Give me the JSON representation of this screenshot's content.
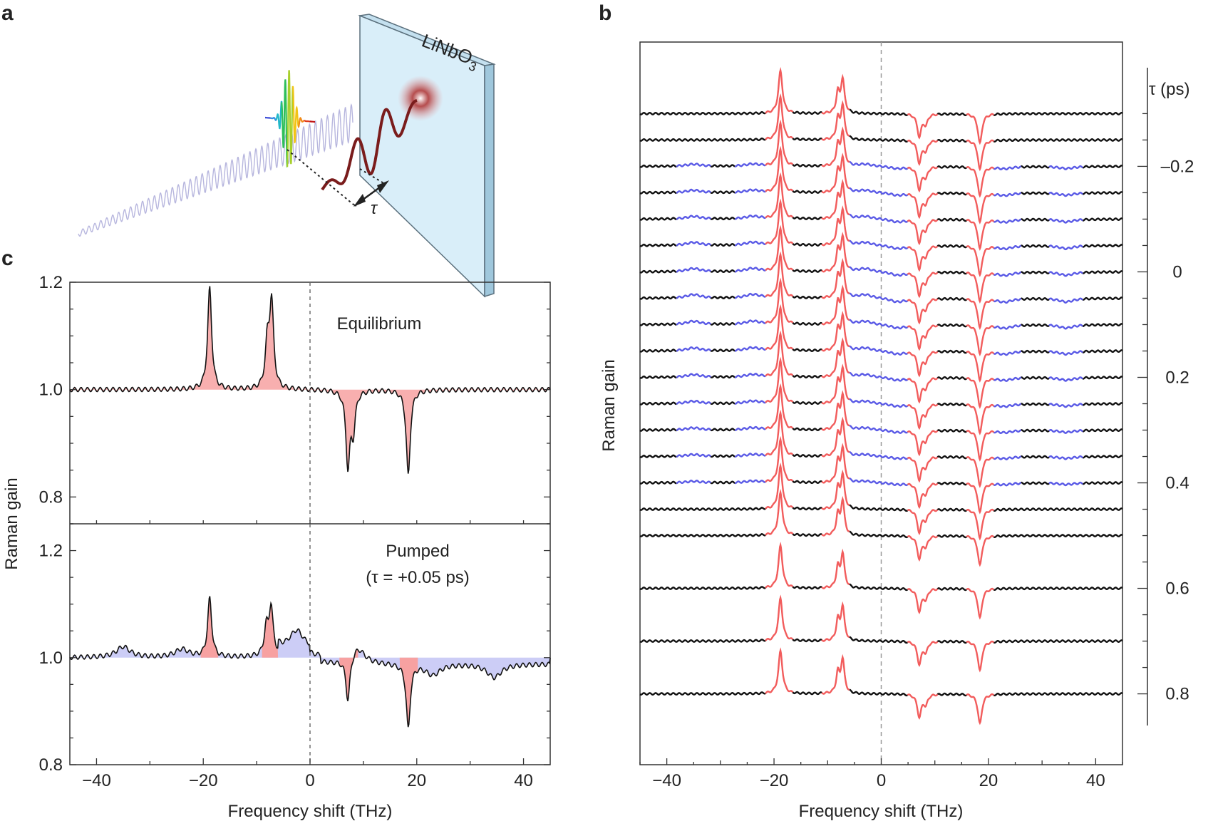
{
  "panel_labels": {
    "a": "a",
    "b": "b",
    "c": "c"
  },
  "panel_a": {
    "crystal_label": "LiNbO",
    "crystal_subscript": "3",
    "delay_symbol": "τ",
    "colors": {
      "crystal_fill": "#d9eef9",
      "crystal_edge": "#5a6f7c",
      "thz": "#7a1c1c",
      "ir_beam": "#b7b6de"
    }
  },
  "chart_data": [
    {
      "id": "c",
      "type": "line",
      "title": "",
      "xlabel": "Frequency shift (THz)",
      "ylabel": "Raman gain",
      "xlim": [
        -45,
        45
      ],
      "xticks": [
        -40,
        -20,
        0,
        20,
        40
      ],
      "subplots": [
        {
          "name": "Equilibrium",
          "annotation": [
            "Equilibrium"
          ],
          "ylim": [
            0.75,
            1.2
          ],
          "yticks": [
            0.8,
            1.0,
            1.2
          ],
          "series": [
            {
              "peaks": [
                {
                  "x": -18.8,
                  "value": 1.19
                },
                {
                  "x": -8.0,
                  "value": 1.08
                },
                {
                  "x": -7.2,
                  "value": 1.16
                },
                {
                  "x": 7.1,
                  "value": 0.86
                },
                {
                  "x": 8.1,
                  "value": 0.93
                },
                {
                  "x": 18.4,
                  "value": 0.84
                }
              ]
            }
          ]
        },
        {
          "name": "Pumped",
          "annotation": [
            "Pumped",
            "(τ = +0.05 ps)"
          ],
          "ylim": [
            0.8,
            1.25
          ],
          "yticks": [
            0.8,
            1.0,
            1.2
          ],
          "series": [
            {
              "peaks": [
                {
                  "x": -35,
                  "value": 1.02
                },
                {
                  "x": -24,
                  "value": 1.015
                },
                {
                  "x": -18.8,
                  "value": 1.11
                },
                {
                  "x": -8.2,
                  "value": 1.05
                },
                {
                  "x": -7.3,
                  "value": 1.09
                },
                {
                  "x": -2.5,
                  "value": 1.035
                },
                {
                  "x": 7.1,
                  "value": 0.92
                },
                {
                  "x": 9.0,
                  "value": 1.03
                },
                {
                  "x": 18.4,
                  "value": 0.88
                },
                {
                  "x": 23,
                  "value": 0.98
                },
                {
                  "x": 34.5,
                  "value": 0.975
                }
              ]
            }
          ]
        }
      ],
      "colors": {
        "gain_fill": "#f7a1a1",
        "loss_fill": "#f7a1a1",
        "pump_fill": "#c3c4f5",
        "line": "#111111",
        "zero_line": "#666666"
      }
    },
    {
      "id": "b",
      "type": "line",
      "title": "",
      "xlabel": "Frequency shift (THz)",
      "ylabel": "Raman gain",
      "right_axis_label": "τ (ps)",
      "xlim": [
        -45,
        45
      ],
      "xticks": [
        -40,
        -20,
        0,
        20,
        40
      ],
      "tau_range": [
        -0.36,
        0.86
      ],
      "tau_ticks": [
        -0.2,
        0,
        0.2,
        0.4,
        0.6,
        0.8
      ],
      "tau_tick_labels": [
        "–0.2",
        "0",
        "0.2",
        "0.4",
        "0.6",
        "0.8"
      ],
      "trace_delays_ps": [
        -0.3,
        -0.25,
        -0.2,
        -0.15,
        -0.1,
        -0.05,
        0,
        0.05,
        0.1,
        0.15,
        0.2,
        0.25,
        0.3,
        0.35,
        0.4,
        0.45,
        0.5,
        0.6,
        0.7,
        0.8
      ],
      "color_legend": {
        "gain_peaks": "#f25c5c",
        "pump_induced": "#5a5ae6",
        "baseline": "#111111"
      }
    }
  ]
}
